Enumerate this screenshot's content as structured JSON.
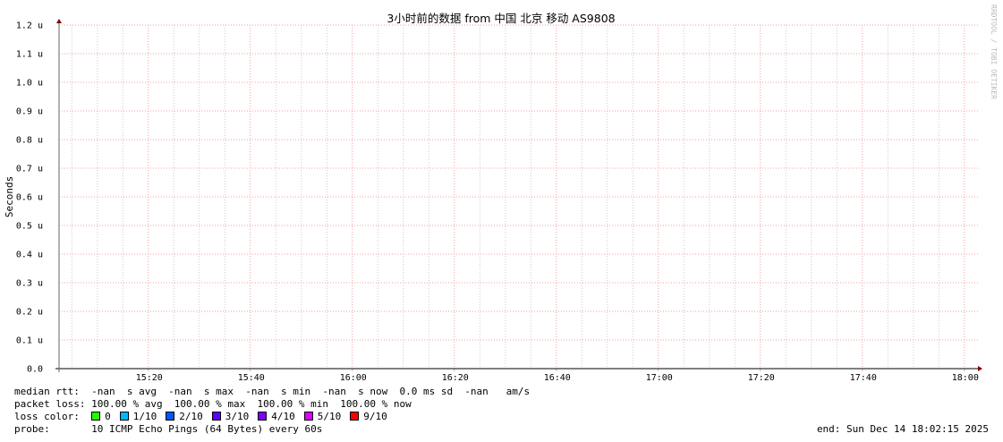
{
  "chart_data": {
    "type": "line",
    "title": "3小时前的数据 from 中国 北京 移动 AS9808",
    "ylabel": "Seconds",
    "xlabel": "",
    "ylim": [
      0,
      1.2
    ],
    "y_unit_suffix": "u",
    "y_ticks": [
      "0.0",
      "0.1 u",
      "0.2 u",
      "0.3 u",
      "0.4 u",
      "0.5 u",
      "0.6 u",
      "0.7 u",
      "0.8 u",
      "0.9 u",
      "1.0 u",
      "1.1 u",
      "1.2 u"
    ],
    "x_ticks": [
      "15:20",
      "15:40",
      "16:00",
      "16:20",
      "16:40",
      "17:00",
      "17:20",
      "17:40",
      "18:00"
    ],
    "xlim": [
      "15:02:30",
      "18:02:40"
    ],
    "grid": true,
    "series": [],
    "watermark": "RRDTOOL / TOBI OETIKER"
  },
  "legend": {
    "median_rtt": "median rtt:  -nan  s avg  -nan  s max  -nan  s min  -nan  s now  0.0 ms sd  -nan   am/s",
    "packet_loss": "packet loss: 100.00 % avg  100.00 % max  100.00 % min  100.00 % now",
    "loss_color_label": "loss color:  ",
    "loss_colors": [
      {
        "label": "0",
        "color": "#26ff00"
      },
      {
        "label": "1/10",
        "color": "#00b8ff"
      },
      {
        "label": "2/10",
        "color": "#0059ff"
      },
      {
        "label": "3/10",
        "color": "#5e00ff"
      },
      {
        "label": "4/10",
        "color": "#7e00ff"
      },
      {
        "label": "5/10",
        "color": "#dd00ff"
      },
      {
        "label": "9/10",
        "color": "#ff0000"
      }
    ],
    "probe": "probe:       10 ICMP Echo Pings (64 Bytes) every 60s",
    "end": "end: Sun Dec 14 18:02:15 2025"
  }
}
